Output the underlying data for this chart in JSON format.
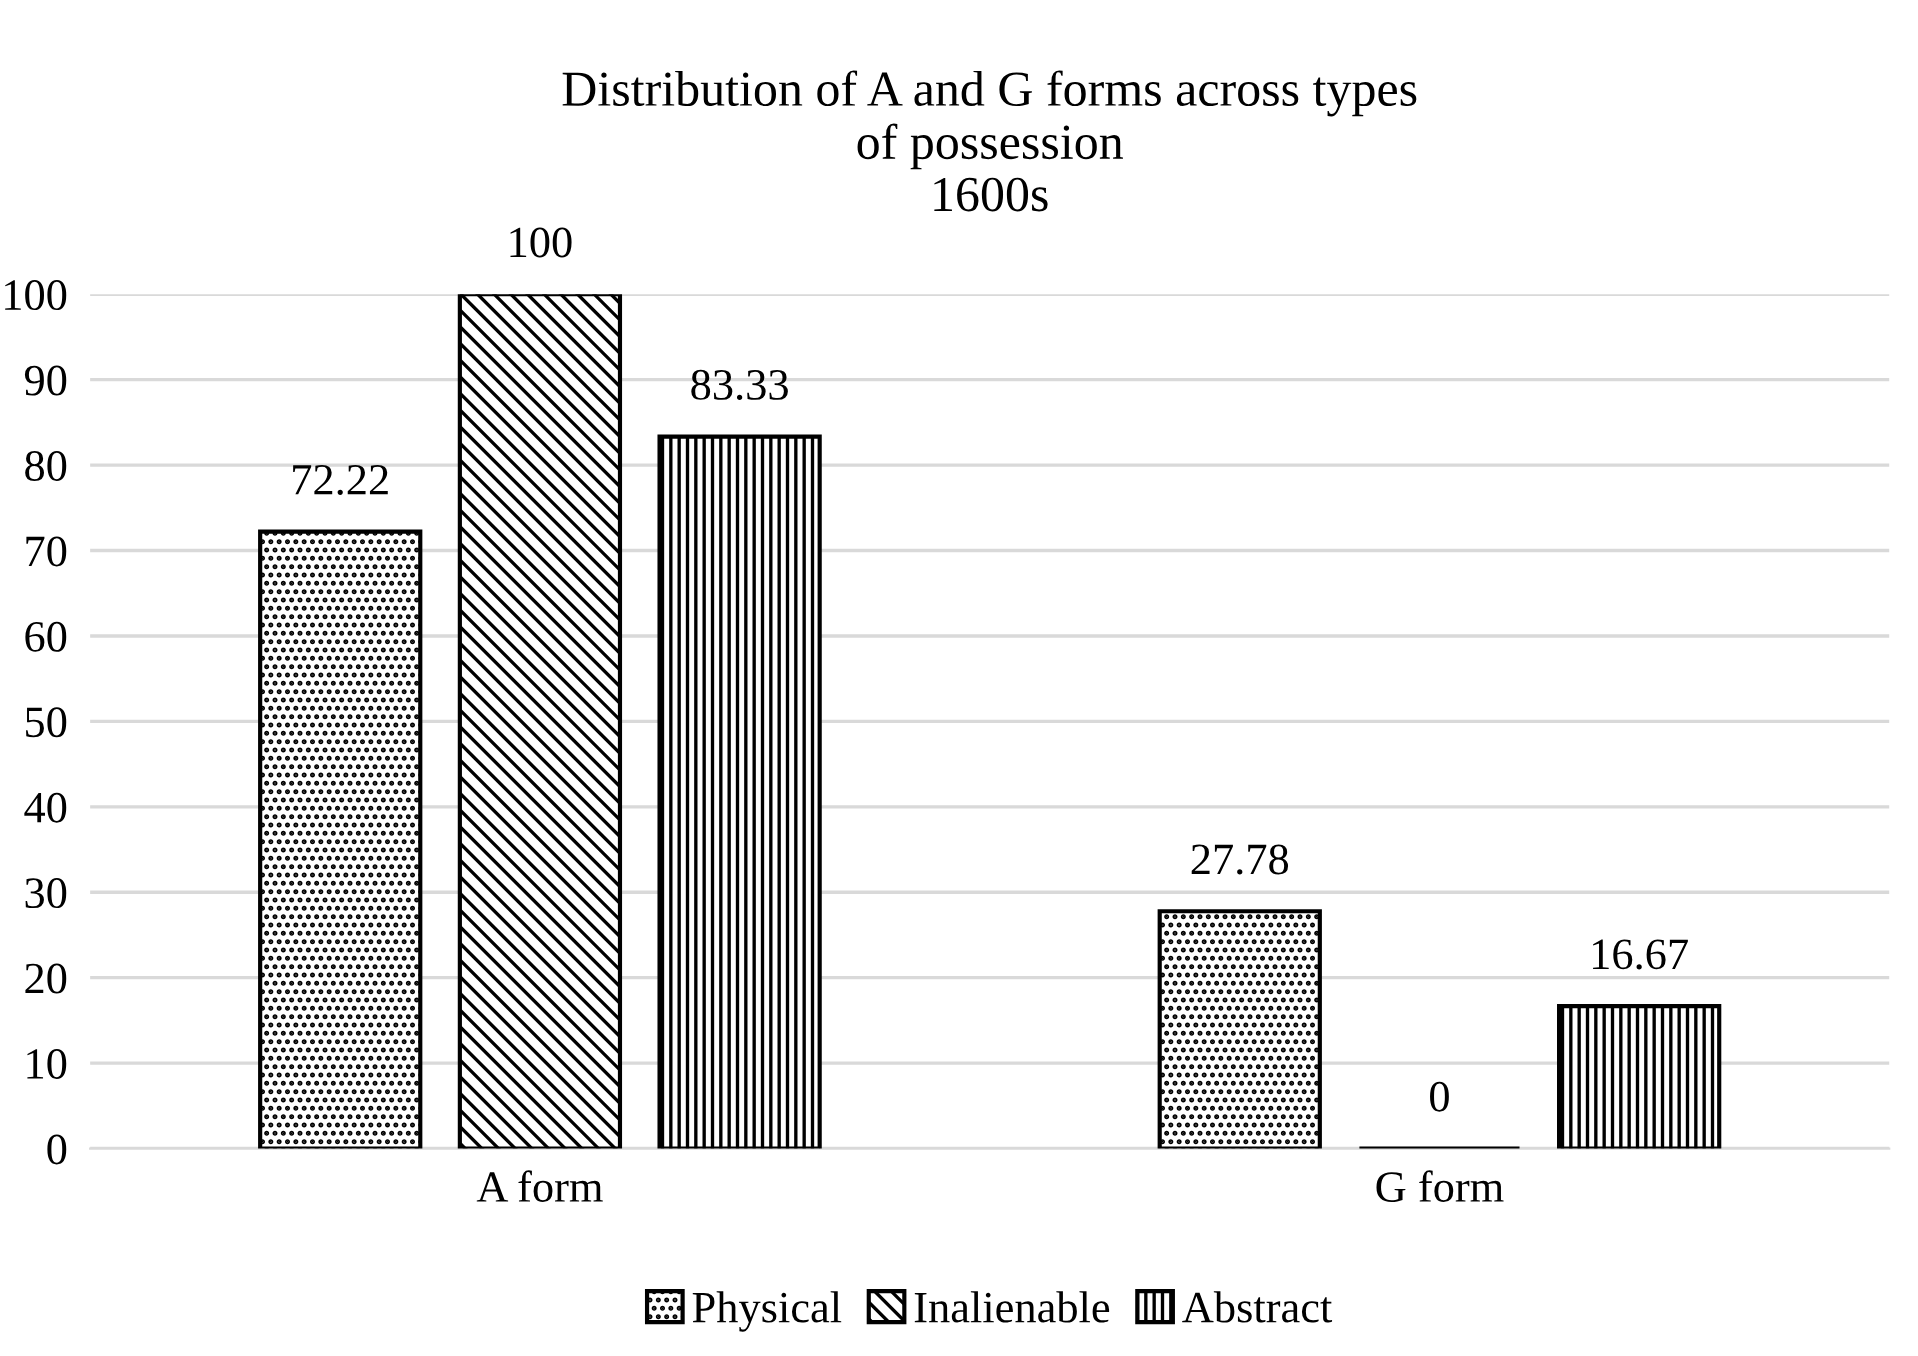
{
  "chart_data": {
    "type": "bar",
    "title": "Distribution of A and G forms across types\nof possession\n1600s",
    "categories": [
      "A form",
      "G form"
    ],
    "series": [
      {
        "name": "Physical",
        "color": "#000000",
        "values": [
          72.22,
          27.78
        ]
      },
      {
        "name": "Inalienable",
        "color": "#000000",
        "values": [
          100,
          0
        ]
      },
      {
        "name": "Abstract",
        "color": "#000000",
        "values": [
          83.33,
          16.67
        ]
      }
    ],
    "ylim": [
      0,
      100
    ],
    "yticks": [
      0,
      10,
      20,
      30,
      40,
      50,
      60,
      70,
      80,
      90,
      100
    ],
    "grid": "y",
    "legend": "bottom",
    "data_labels": true
  }
}
